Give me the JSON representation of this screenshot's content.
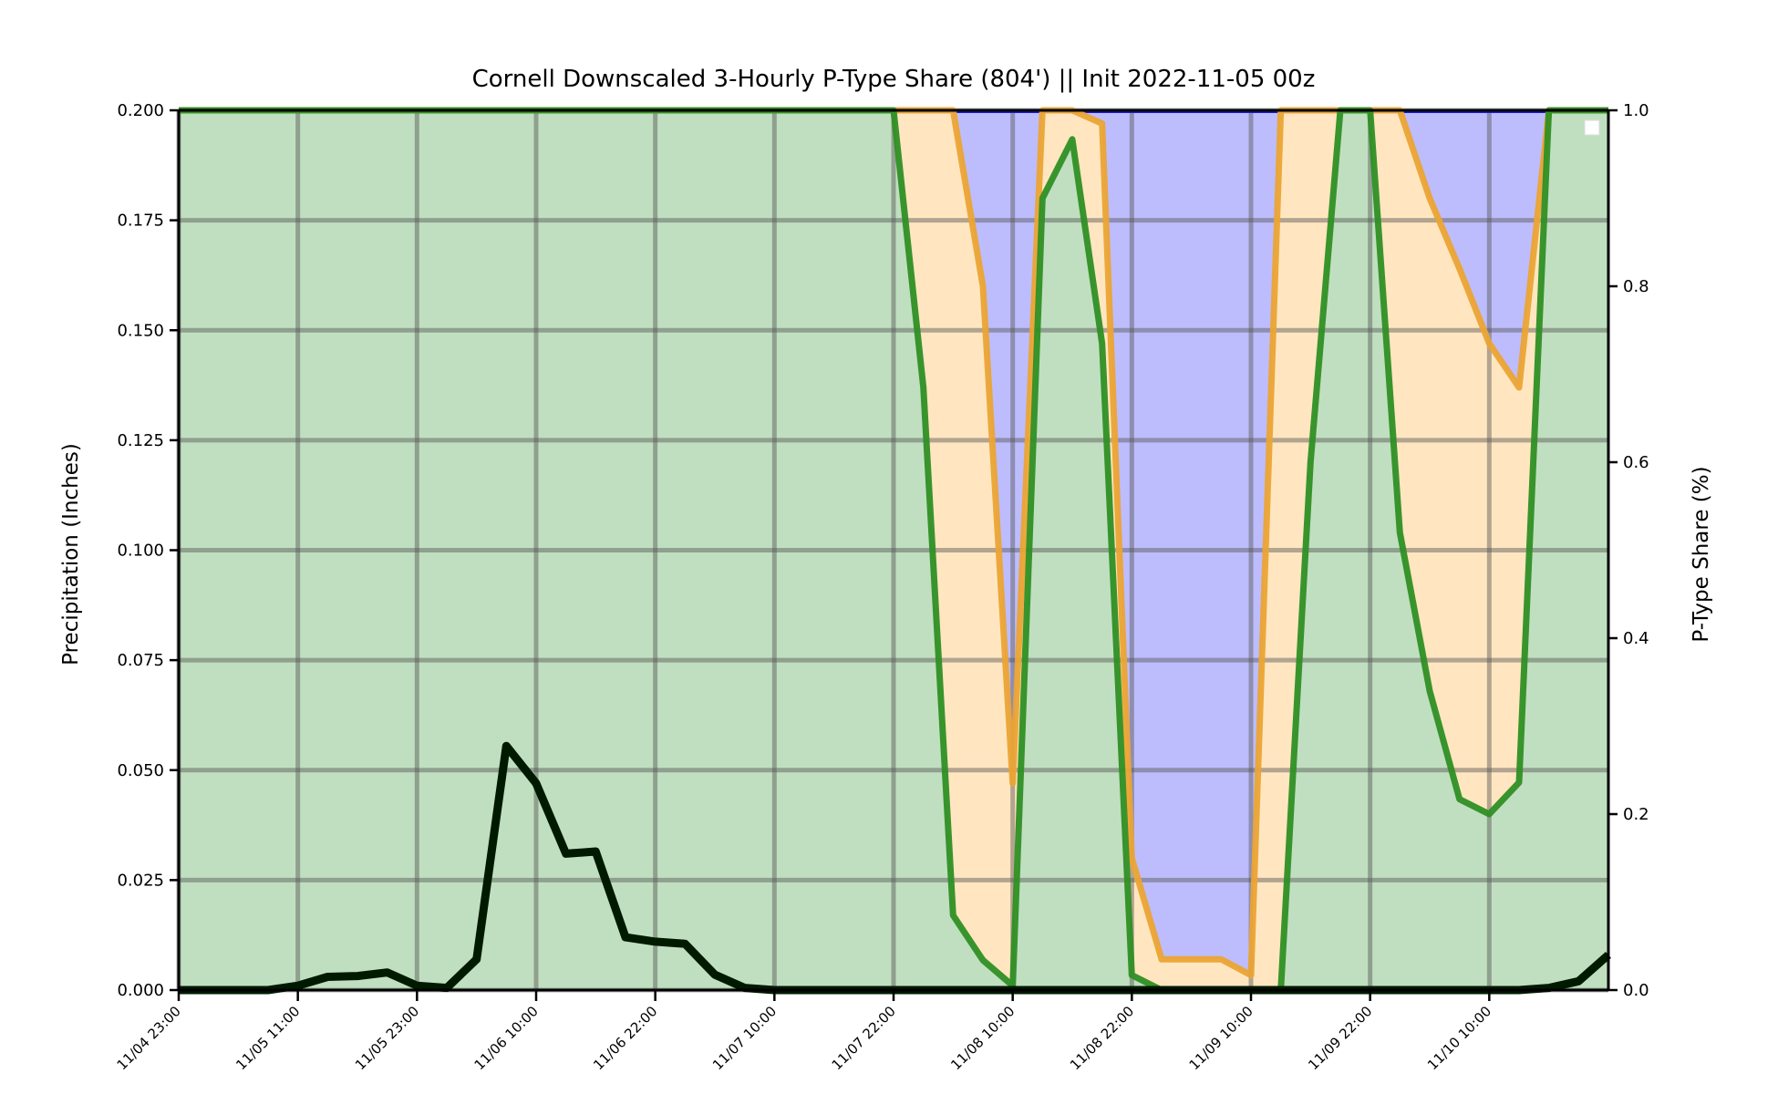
{
  "chart_data": {
    "type": "area",
    "title": "Cornell Downscaled 3-Hourly P-Type Share (804') || Init 2022-11-05 00z",
    "ylabel": "Precipitation (Inches)",
    "y2label": "P-Type Share (%)",
    "ylim": [
      0,
      0.2
    ],
    "y2lim": [
      0,
      1
    ],
    "yticks": [
      "0.000",
      "0.025",
      "0.050",
      "0.075",
      "0.100",
      "0.125",
      "0.150",
      "0.175",
      "0.200"
    ],
    "y2ticks": [
      "0.0",
      "0.2",
      "0.4",
      "0.6",
      "0.8",
      "1.0"
    ],
    "xticks": [
      "11/04 23:00",
      "11/05 11:00",
      "11/05 23:00",
      "11/06 10:00",
      "11/06 22:00",
      "11/07 10:00",
      "11/07 22:00",
      "11/08 10:00",
      "11/08 22:00",
      "11/09 10:00",
      "11/09 22:00",
      "11/10 10:00"
    ],
    "grid": true,
    "legend": "top-right",
    "colors": {
      "rain_fill": "#c0dfc0",
      "mix_fill": "#ffe6c0",
      "snow_fill": "#bdbdfd",
      "rain_line": "#2f8f24",
      "mix_line": "#eba434",
      "snow_line": "#1a1ad0",
      "precip_line": "#001a00",
      "grid": "#555555"
    },
    "series": [
      {
        "values": [
          0.0,
          0.0,
          0.0,
          0.0,
          0.001,
          0.003,
          0.0032,
          0.004,
          0.001,
          0.0005,
          0.007,
          0.0555,
          0.047,
          0.031,
          0.0315,
          0.012,
          0.011,
          0.0105,
          0.0035,
          0.0005,
          0.0,
          0.0,
          0.0,
          0.0,
          0.0,
          0.0,
          0.0,
          0.0,
          0.0,
          0.0,
          0.0,
          0.0,
          0.0,
          0.0,
          0.0,
          0.0,
          0.0,
          0.0,
          0.0,
          0.0,
          0.0,
          0.0,
          0.0,
          0.0,
          0.0,
          0.0,
          0.0005,
          0.002,
          0.008
        ]
      },
      {
        "values": [
          1,
          1,
          1,
          1,
          1,
          1,
          1,
          1,
          1,
          1,
          1,
          1,
          1,
          1,
          1,
          1,
          1,
          1,
          1,
          1,
          1,
          1,
          1,
          1,
          1,
          0.685,
          0.085,
          0.034,
          0.005,
          0.9,
          0.967,
          0.735,
          0.017,
          0.0,
          0.0,
          0.0,
          0.0,
          0.0,
          0.6,
          1,
          1,
          0.52,
          0.34,
          0.217,
          0.2,
          0.236,
          1,
          1,
          1
        ]
      },
      {
        "values": [
          1,
          1,
          1,
          1,
          1,
          1,
          1,
          1,
          1,
          1,
          1,
          1,
          1,
          1,
          1,
          1,
          1,
          1,
          1,
          1,
          1,
          1,
          1,
          1,
          1,
          1,
          1,
          0.8,
          0.235,
          1,
          1,
          0.985,
          0.15,
          0.035,
          0.035,
          0.035,
          0.017,
          1,
          1,
          1,
          1,
          1,
          0.9,
          0.82,
          0.735,
          0.685,
          1,
          1,
          1
        ]
      }
    ]
  }
}
